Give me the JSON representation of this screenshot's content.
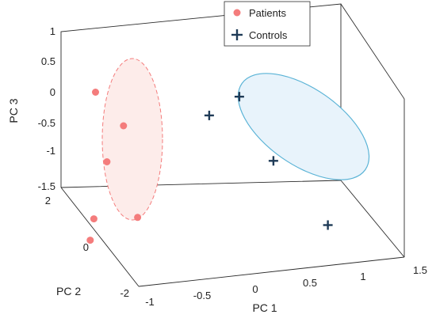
{
  "chart_data": {
    "type": "scatter",
    "projection": "3d",
    "title": "",
    "xlabel": "PC 1",
    "ylabel": "PC 2",
    "zlabel": "PC 3",
    "xlim": [
      -1,
      1.5
    ],
    "ylim": [
      -2,
      2
    ],
    "zlim": [
      -1.5,
      1
    ],
    "x_ticks": [
      "-1",
      "-0.5",
      "0",
      "0.5",
      "1",
      "1.5"
    ],
    "y_ticks": [
      "-2",
      "0",
      "2"
    ],
    "z_ticks": [
      "-1.5",
      "-1",
      "-0.5",
      "0",
      "0.5",
      "1"
    ],
    "legend_position": "top-right",
    "series": [
      {
        "name": "Patients",
        "marker": "circle",
        "color": "#f47c7c",
        "points": [
          {
            "x": -0.9,
            "y": 0.8,
            "z": 0.5
          },
          {
            "x": -0.65,
            "y": 0.8,
            "z": -0.05
          },
          {
            "x": -0.85,
            "y": 0.5,
            "z": -0.5
          },
          {
            "x": -0.75,
            "y": -0.5,
            "z": -1.0
          },
          {
            "x": -0.95,
            "y": 0.6,
            "z": -1.45
          },
          {
            "x": -1.0,
            "y": 0.5,
            "z": -1.75
          }
        ],
        "region": {
          "style": "dashed-ellipse",
          "fill": "#fdecea",
          "stroke": "#f47c7c"
        }
      },
      {
        "name": "Controls",
        "marker": "plus",
        "color": "#1f3b57",
        "points": [
          {
            "x": 0.35,
            "y": 0.6,
            "z": 0.45
          },
          {
            "x": 0.15,
            "y": 1.0,
            "z": 0.0
          },
          {
            "x": 0.55,
            "y": 0.0,
            "z": -0.35
          },
          {
            "x": 0.95,
            "y": -0.5,
            "z": -1.2
          }
        ],
        "region": {
          "style": "solid-ellipse",
          "fill": "#e8f3fb",
          "stroke": "#5ab3d6"
        }
      }
    ]
  }
}
